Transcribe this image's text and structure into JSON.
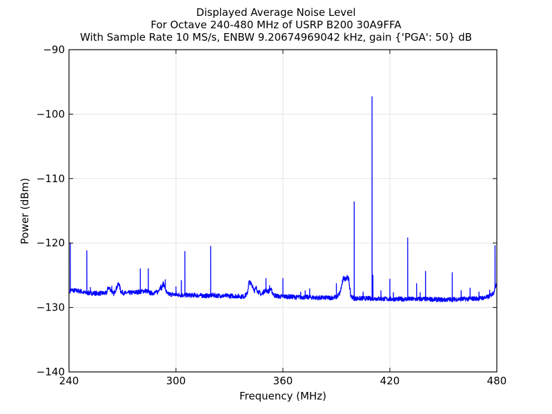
{
  "chart_data": {
    "type": "line",
    "title_lines": [
      "Displayed Average Noise Level",
      "For Octave 240-480 MHz of USRP B200 30A9FFA",
      "With Sample Rate 10 MS/s, ENBW 9.20674969042 kHz, gain {'PGA': 50} dB"
    ],
    "xlabel": "Frequency (MHz)",
    "ylabel": "Power (dBm)",
    "xlim": [
      240,
      480
    ],
    "ylim": [
      -140,
      -90
    ],
    "x_ticks": [
      240,
      300,
      360,
      420,
      480
    ],
    "x_tick_labels": [
      "240",
      "300",
      "360",
      "420",
      "480"
    ],
    "y_ticks": [
      -140,
      -130,
      -120,
      -110,
      -100,
      -90
    ],
    "y_tick_labels": [
      "−140",
      "−130",
      "−120",
      "−110",
      "−100",
      "−90"
    ],
    "grid": true,
    "line_color": "#0000ff",
    "series": [
      {
        "x": [
          240.5,
          241,
          244,
          247,
          248,
          255,
          261,
          262,
          263,
          265,
          267,
          268,
          269,
          271,
          279,
          283,
          286,
          290,
          291,
          292,
          293,
          295,
          299,
          305,
          311,
          317,
          320,
          326,
          332,
          338,
          340,
          341,
          342,
          343,
          344,
          345,
          346,
          348,
          350,
          352,
          353,
          355,
          358,
          362,
          368,
          374,
          380,
          386,
          390,
          392,
          394,
          395,
          396,
          397,
          398,
          400,
          410,
          420,
          430,
          440,
          450,
          460,
          470,
          475,
          478,
          479,
          479.8
        ],
        "y": [
          -127.5,
          -127.3,
          -127.4,
          -127.5,
          -127.7,
          -127.8,
          -127.8,
          -126.9,
          -127.1,
          -127.9,
          -126.8,
          -126.2,
          -127.5,
          -127.8,
          -127.6,
          -127.4,
          -127.8,
          -127.6,
          -126.8,
          -127.0,
          -126.2,
          -127.9,
          -128.0,
          -128.1,
          -128.1,
          -128.2,
          -128.1,
          -128.2,
          -128.2,
          -128.3,
          -127.9,
          -126.0,
          -126.3,
          -126.6,
          -127.4,
          -127.0,
          -127.5,
          -128.0,
          -127.3,
          -127.5,
          -127.1,
          -128.1,
          -128.3,
          -128.3,
          -128.4,
          -128.4,
          -128.5,
          -128.5,
          -128.4,
          -127.8,
          -125.4,
          -125.6,
          -125.2,
          -125.7,
          -128.2,
          -128.6,
          -128.6,
          -128.7,
          -128.7,
          -128.7,
          -128.8,
          -128.7,
          -128.6,
          -128.4,
          -127.8,
          -127.0,
          -126.2
        ],
        "spikes": [
          {
            "x": 240.7,
            "y": -120.0
          },
          {
            "x": 250.0,
            "y": -121.2
          },
          {
            "x": 252.0,
            "y": -126.9
          },
          {
            "x": 264.0,
            "y": -126.7
          },
          {
            "x": 280.0,
            "y": -124.0
          },
          {
            "x": 284.5,
            "y": -124.0
          },
          {
            "x": 291.5,
            "y": -126.5
          },
          {
            "x": 294.0,
            "y": -125.7
          },
          {
            "x": 300.0,
            "y": -126.8
          },
          {
            "x": 303.0,
            "y": -125.8
          },
          {
            "x": 305.0,
            "y": -121.3
          },
          {
            "x": 319.5,
            "y": -120.5
          },
          {
            "x": 345.0,
            "y": -126.7
          },
          {
            "x": 350.5,
            "y": -125.5
          },
          {
            "x": 352.5,
            "y": -126.6
          },
          {
            "x": 360.0,
            "y": -125.5
          },
          {
            "x": 370.0,
            "y": -127.6
          },
          {
            "x": 372.5,
            "y": -127.4
          },
          {
            "x": 375.0,
            "y": -127.1
          },
          {
            "x": 390.0,
            "y": -126.3
          },
          {
            "x": 396.0,
            "y": -125.0
          },
          {
            "x": 400.0,
            "y": -113.6
          },
          {
            "x": 405.0,
            "y": -127.6
          },
          {
            "x": 410.0,
            "y": -97.3
          },
          {
            "x": 410.5,
            "y": -125.0
          },
          {
            "x": 415.0,
            "y": -127.4
          },
          {
            "x": 420.0,
            "y": -125.6
          },
          {
            "x": 422.0,
            "y": -127.7
          },
          {
            "x": 430.0,
            "y": -119.2
          },
          {
            "x": 435.0,
            "y": -126.3
          },
          {
            "x": 437.0,
            "y": -127.7
          },
          {
            "x": 440.0,
            "y": -124.4
          },
          {
            "x": 455.0,
            "y": -124.6
          },
          {
            "x": 460.0,
            "y": -127.4
          },
          {
            "x": 465.0,
            "y": -127.0
          },
          {
            "x": 470.0,
            "y": -127.6
          },
          {
            "x": 476.0,
            "y": -127.3
          },
          {
            "x": 479.0,
            "y": -120.4
          }
        ]
      }
    ]
  }
}
